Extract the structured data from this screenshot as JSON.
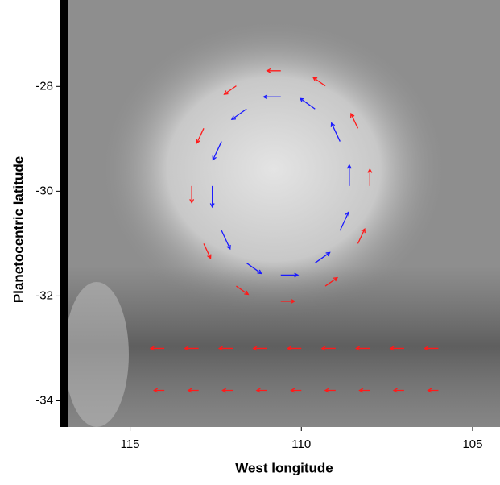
{
  "chart_data": {
    "type": "quiver",
    "x_label": "West longitude",
    "y_label": "Planetocentric latitude",
    "xlim": [
      116.8,
      104.2
    ],
    "ylim": [
      -26.35,
      -34.5
    ],
    "xticks": [
      115,
      110,
      105
    ],
    "yticks": [
      -28,
      -30,
      -32,
      -34
    ],
    "series": [
      {
        "color": "#1a1aff",
        "x": [
          108.6,
          108.87,
          109.6,
          110.6,
          111.6,
          112.33,
          112.6,
          112.33,
          111.6,
          110.6,
          109.6,
          108.87
        ],
        "y": [
          -29.9,
          -29.05,
          -28.43,
          -28.2,
          -28.43,
          -29.05,
          -29.9,
          -30.75,
          -31.37,
          -31.6,
          -31.37,
          -30.75
        ],
        "u": [
          0,
          0.25,
          0.43,
          0.5,
          0.43,
          0.25,
          0,
          -0.25,
          -0.43,
          -0.5,
          -0.43,
          -0.25
        ],
        "v": [
          0.4,
          0.35,
          0.2,
          0,
          -0.2,
          -0.35,
          -0.4,
          -0.35,
          -0.2,
          0,
          0.2,
          0.35
        ]
      },
      {
        "color": "#ff1a1a",
        "x": [
          108.0,
          108.35,
          109.3,
          110.6,
          111.9,
          112.85,
          113.2,
          112.85,
          111.9,
          110.6,
          109.3,
          108.35,
          114,
          113,
          112,
          111,
          110,
          109,
          108,
          107,
          106,
          114,
          113,
          112,
          111,
          110,
          109,
          108,
          107,
          106
        ],
        "y": [
          -29.9,
          -28.8,
          -27.99,
          -27.7,
          -27.99,
          -28.8,
          -29.9,
          -31.0,
          -31.81,
          -32.1,
          -31.81,
          -31.0,
          -33.0,
          -33.0,
          -33.0,
          -33.0,
          -33.0,
          -33.0,
          -33.0,
          -33.0,
          -33.0,
          -33.8,
          -33.8,
          -33.8,
          -33.8,
          -33.8,
          -33.8,
          -33.8,
          -33.8,
          -33.8
        ],
        "u": [
          0,
          0.2,
          0.35,
          0.4,
          0.35,
          0.2,
          0,
          -0.2,
          -0.35,
          -0.4,
          -0.35,
          -0.2,
          0.4,
          0.4,
          0.4,
          0.4,
          0.4,
          0.4,
          0.4,
          0.4,
          0.4,
          0.3,
          0.3,
          0.3,
          0.3,
          0.3,
          0.3,
          0.3,
          0.3,
          0.3
        ],
        "v": [
          0.32,
          0.28,
          0.16,
          0,
          -0.16,
          -0.28,
          -0.32,
          -0.28,
          -0.16,
          0,
          0.16,
          0.28,
          0,
          0,
          0,
          0,
          0,
          0,
          0,
          0,
          0,
          0,
          0,
          0,
          0,
          0,
          0,
          0,
          0,
          0
        ]
      }
    ]
  }
}
